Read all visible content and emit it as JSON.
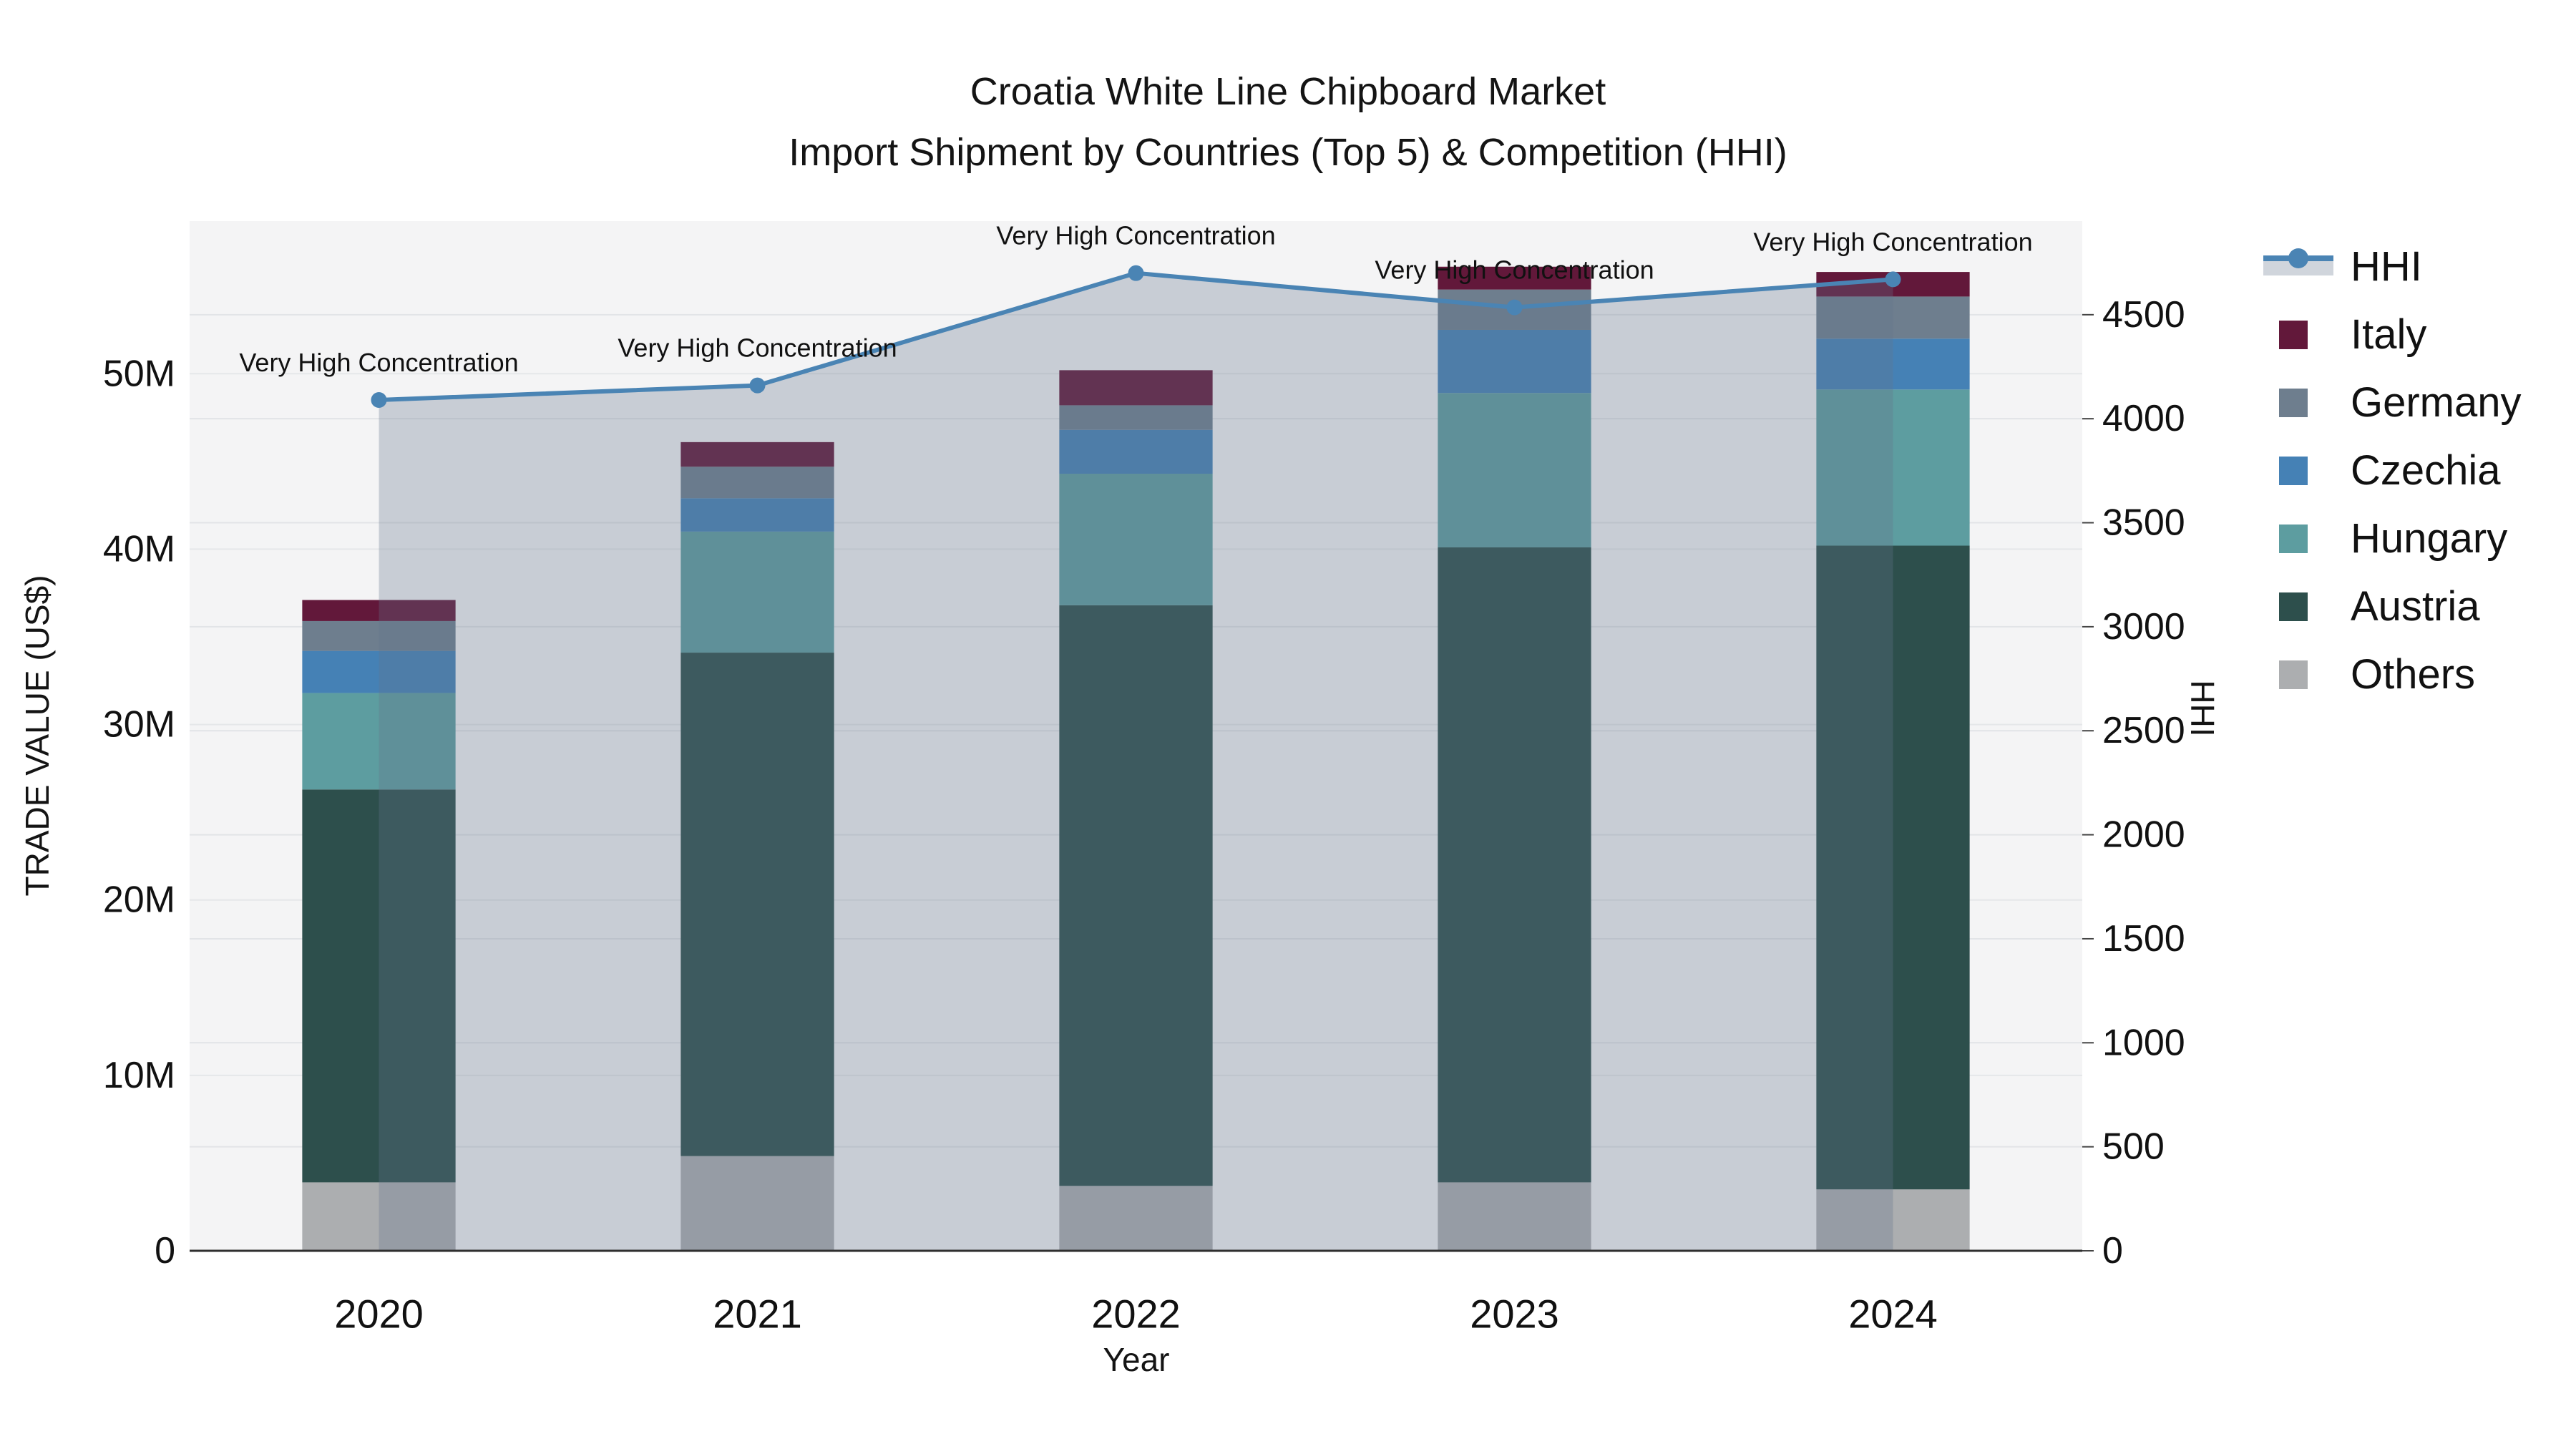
{
  "title": {
    "line1": "Croatia White Line Chipboard Market",
    "line2": "Import Shipment by Countries (Top 5) & Competition (HHI)"
  },
  "axes": {
    "left": {
      "title": "TRADE VALUE (US$)",
      "tick_labels": [
        "0",
        "10M",
        "20M",
        "30M",
        "40M",
        "50M"
      ],
      "tick_values_m": [
        0,
        10,
        20,
        30,
        40,
        50
      ]
    },
    "right": {
      "title": "HHI",
      "tick_labels": [
        "0",
        "500",
        "1000",
        "1500",
        "2000",
        "2500",
        "3000",
        "3500",
        "4000",
        "4500"
      ],
      "tick_values": [
        0,
        500,
        1000,
        1500,
        2000,
        2500,
        3000,
        3500,
        4000,
        4500
      ]
    },
    "x": {
      "title": "Year",
      "tick_labels": [
        "2020",
        "2021",
        "2022",
        "2023",
        "2024"
      ]
    }
  },
  "legend": {
    "items": [
      {
        "label": "HHI",
        "type": "line",
        "color": "#4a84b4"
      },
      {
        "label": "Italy",
        "type": "bar",
        "color": "#62183a"
      },
      {
        "label": "Germany",
        "type": "bar",
        "color": "#6e7e8e"
      },
      {
        "label": "Czechia",
        "type": "bar",
        "color": "#4581b5"
      },
      {
        "label": "Hungary",
        "type": "bar",
        "color": "#5d9da0"
      },
      {
        "label": "Austria",
        "type": "bar",
        "color": "#2d4f4c"
      },
      {
        "label": "Others",
        "type": "bar",
        "color": "#acaeb0"
      }
    ]
  },
  "chart_data": {
    "type": "bar",
    "subtype": "stacked-bars-with-overlaid-line",
    "title": "Croatia White Line Chipboard Market — Import Shipment by Countries (Top 5) & Competition (HHI)",
    "xlabel": "Year",
    "ylabel_left": "TRADE VALUE (US$)",
    "ylabel_right": "HHI",
    "values_unit": "million US$",
    "categories": [
      "2020",
      "2021",
      "2022",
      "2023",
      "2024"
    ],
    "series": [
      {
        "name": "Others",
        "color": "#acaeb0",
        "values": [
          3.9,
          5.4,
          3.7,
          3.9,
          3.5
        ]
      },
      {
        "name": "Austria",
        "color": "#2d4f4c",
        "values": [
          22.4,
          28.7,
          33.1,
          36.2,
          36.7
        ]
      },
      {
        "name": "Hungary",
        "color": "#5d9da0",
        "values": [
          5.5,
          6.9,
          7.5,
          8.8,
          8.9
        ]
      },
      {
        "name": "Czechia",
        "color": "#4581b5",
        "values": [
          2.4,
          1.9,
          2.5,
          3.6,
          2.9
        ]
      },
      {
        "name": "Germany",
        "color": "#6e7e8e",
        "values": [
          1.7,
          1.8,
          1.4,
          2.3,
          2.4
        ]
      },
      {
        "name": "Italy",
        "color": "#62183a",
        "values": [
          1.2,
          1.4,
          2.0,
          1.3,
          1.4
        ]
      }
    ],
    "totals_m": [
      37.1,
      46.1,
      50.2,
      56.1,
      55.8
    ],
    "line_series": {
      "name": "HHI",
      "axis": "right",
      "color": "#4a84b4",
      "fill": "rgba(100,115,140,0.30)",
      "values": [
        4090,
        4160,
        4700,
        4535,
        4670
      ]
    },
    "annotations": [
      "Very High Concentration",
      "Very High Concentration",
      "Very High Concentration",
      "Very High Concentration",
      "Very High Concentration"
    ],
    "ylim_left": [
      0,
      58.7
    ],
    "ylim_right": [
      0,
      4950
    ],
    "grid": true,
    "legend_position": "right"
  }
}
